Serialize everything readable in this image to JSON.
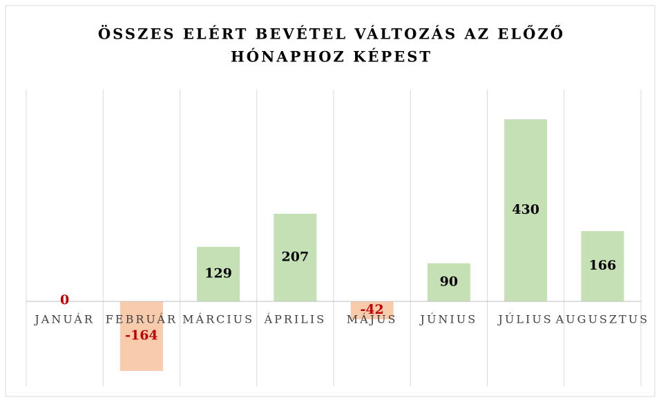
{
  "chart_data": {
    "type": "bar",
    "title": [
      "ÖSSZES ELÉRT BEVÉTEL VÁLTOZÁS AZ ELŐZŐ",
      "HÓNAPHOZ KÉPEST"
    ],
    "categories": [
      "JANUÁR",
      "FEBRUÁR",
      "MÁRCIUS",
      "ÁPRILIS",
      "MÁJUS",
      "JÚNIUS",
      "JÚLIUS",
      "AUGUSZTUS"
    ],
    "values": [
      0,
      -164,
      129,
      207,
      -42,
      90,
      430,
      166
    ],
    "colors": {
      "positive": "#c5e0b4",
      "negative": "#f8cbad"
    },
    "label_colors": {
      "positive": "#000000",
      "negative": "#c00000"
    },
    "ylim": [
      -200,
      500
    ]
  }
}
